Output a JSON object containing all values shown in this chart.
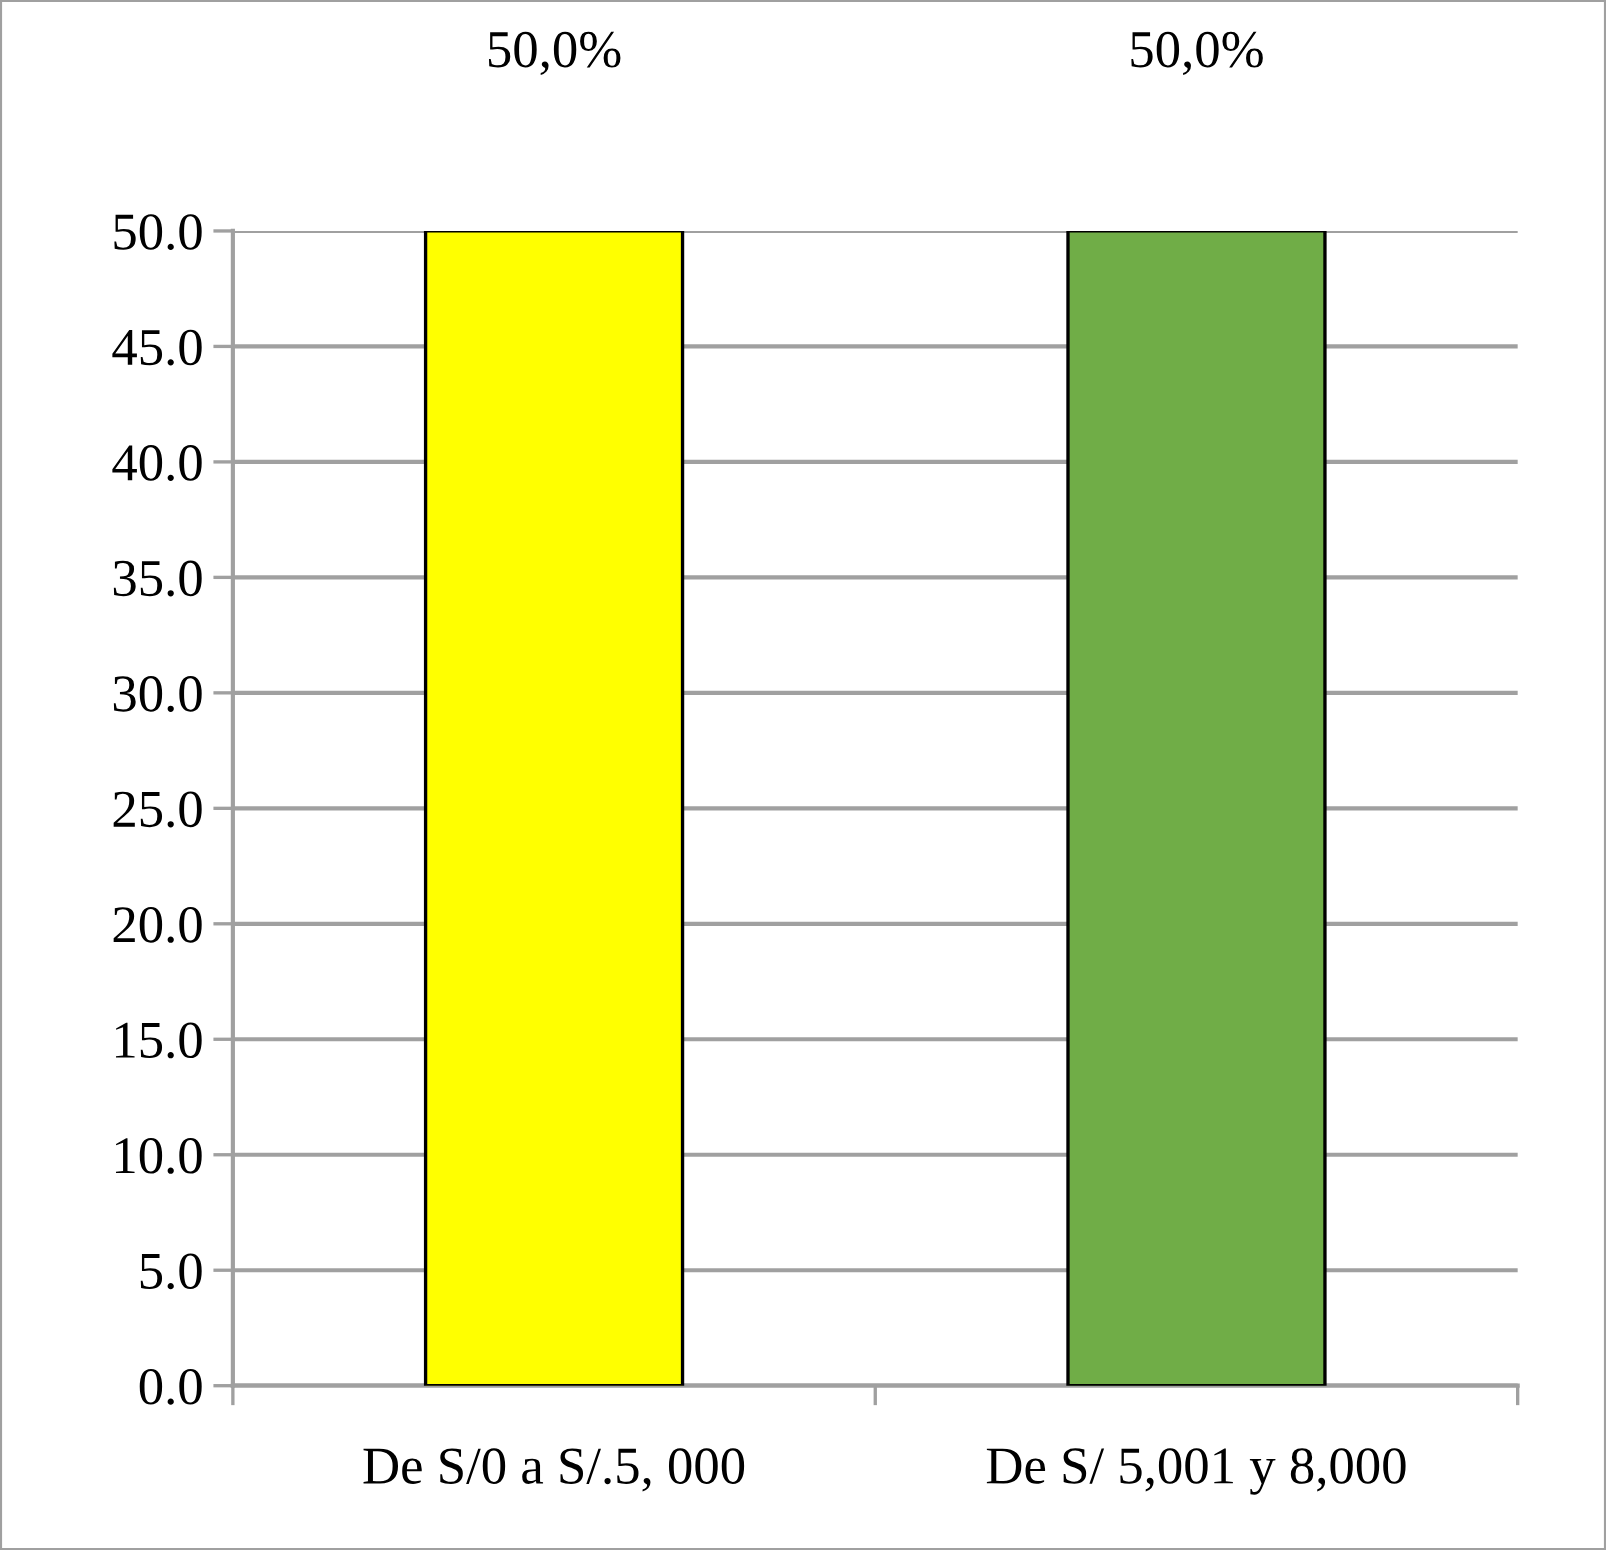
{
  "chart_data": {
    "type": "bar",
    "categories": [
      "De S/0 a S/.5, 000",
      "De S/ 5,001 y 8,000"
    ],
    "values": [
      50.0,
      50.0
    ],
    "colors": [
      "#ffff00",
      "#70ad47"
    ],
    "value_labels": [
      "50,0%",
      "50,0%"
    ],
    "ylim": [
      0,
      50
    ],
    "yticks": [
      {
        "value": 0,
        "label": "0.0"
      },
      {
        "value": 5,
        "label": "5.0"
      },
      {
        "value": 10,
        "label": "10.0"
      },
      {
        "value": 15,
        "label": "15.0"
      },
      {
        "value": 20,
        "label": "20.0"
      },
      {
        "value": 25,
        "label": "25.0"
      },
      {
        "value": 30,
        "label": "30.0"
      },
      {
        "value": 35,
        "label": "35.0"
      },
      {
        "value": 40,
        "label": "40.0"
      },
      {
        "value": 45,
        "label": "45.0"
      },
      {
        "value": 50,
        "label": "50.0"
      }
    ],
    "grid": "y"
  }
}
